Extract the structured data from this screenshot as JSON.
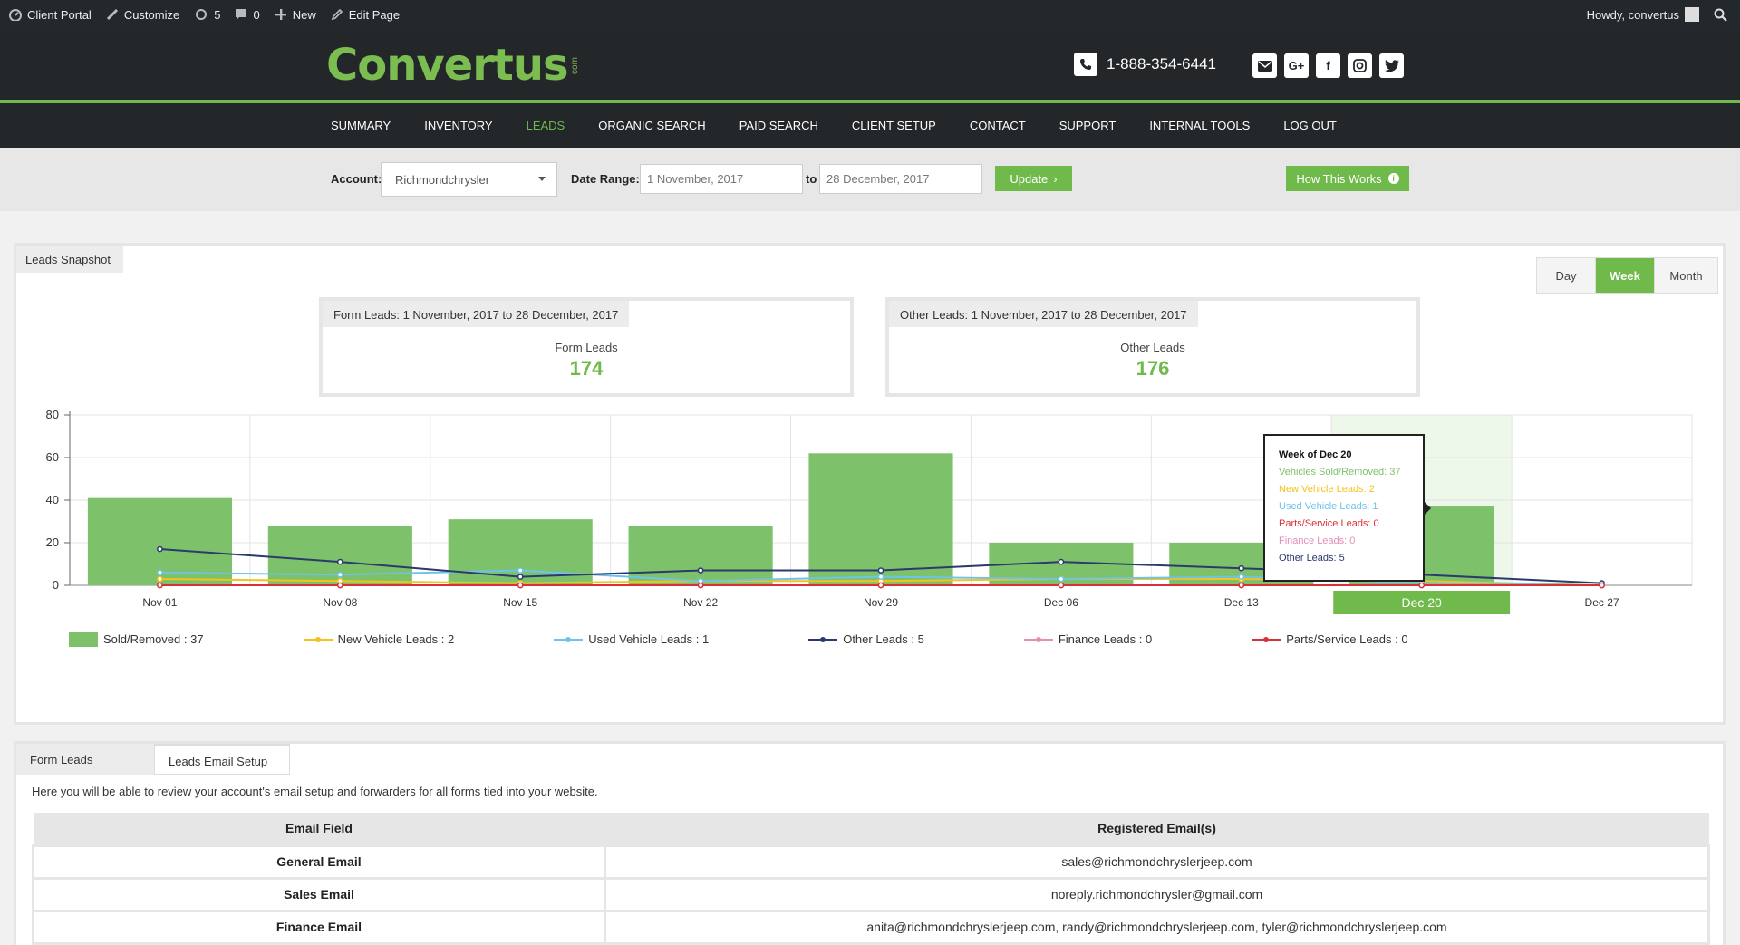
{
  "adminbar": {
    "items": [
      {
        "icon": "dashboard-icon",
        "label": "Client Portal"
      },
      {
        "icon": "brush-icon",
        "label": "Customize"
      },
      {
        "icon": "updates-icon",
        "label": "5"
      },
      {
        "icon": "comment-icon",
        "label": "0"
      },
      {
        "icon": "plus-icon",
        "label": "New"
      },
      {
        "icon": "pencil-icon",
        "label": "Edit Page"
      }
    ],
    "greeting": "Howdy, convertus"
  },
  "header": {
    "logo_text": "Convertus",
    "logo_suffix": "com",
    "phone": "1-888-354-6441",
    "socials": [
      "email-icon",
      "google-plus-icon",
      "facebook-icon",
      "instagram-icon",
      "twitter-icon"
    ]
  },
  "nav": {
    "items": [
      "SUMMARY",
      "INVENTORY",
      "LEADS",
      "ORGANIC SEARCH",
      "PAID SEARCH",
      "CLIENT SETUP",
      "CONTACT",
      "SUPPORT",
      "INTERNAL TOOLS",
      "LOG OUT"
    ],
    "active": "LEADS"
  },
  "filters": {
    "account_label": "Account:",
    "account_value": "Richmondchrysler",
    "date_range_label": "Date Range:",
    "date_from": "1 November, 2017",
    "to_label": "to",
    "date_to": "28 December, 2017",
    "update_label": "Update",
    "how_label": "How This Works"
  },
  "snapshot": {
    "tab_label": "Leads Snapshot",
    "periods": [
      "Day",
      "Week",
      "Month"
    ],
    "active_period": "Week",
    "form_box": {
      "header": "Form Leads: 1 November, 2017 to 28 December, 2017",
      "label": "Form Leads",
      "value": "174"
    },
    "other_box": {
      "header": "Other Leads: 1 November, 2017 to 28 December, 2017",
      "label": "Other Leads",
      "value": "176"
    }
  },
  "chart_data": {
    "type": "bar",
    "categories": [
      "Nov 01",
      "Nov 08",
      "Nov 15",
      "Nov 22",
      "Nov 29",
      "Dec 06",
      "Dec 13",
      "Dec 20",
      "Dec 27"
    ],
    "ylim": [
      0,
      80
    ],
    "yticks": [
      0,
      20,
      40,
      60,
      80
    ],
    "grid": true,
    "highlighted_category": "Dec 20",
    "series": [
      {
        "name": "Sold/Removed",
        "kind": "bar",
        "color": "#7dc26a",
        "values": [
          41,
          28,
          31,
          28,
          62,
          20,
          20,
          37,
          0
        ]
      },
      {
        "name": "New Vehicle Leads",
        "kind": "line",
        "color": "#f3c31c",
        "values": [
          3,
          2,
          1,
          2,
          2,
          3,
          3,
          2,
          0
        ]
      },
      {
        "name": "Used Vehicle Leads",
        "kind": "line",
        "color": "#6fc3e8",
        "values": [
          6,
          5,
          7,
          2,
          4,
          3,
          4,
          1,
          0
        ]
      },
      {
        "name": "Other Leads",
        "kind": "line",
        "color": "#2b3a6b",
        "values": [
          17,
          11,
          4,
          7,
          7,
          11,
          8,
          5,
          1
        ]
      },
      {
        "name": "Finance Leads",
        "kind": "line",
        "color": "#e38fb5",
        "values": [
          0,
          0,
          0,
          0,
          0,
          0,
          0,
          0,
          0
        ]
      },
      {
        "name": "Parts/Service Leads",
        "kind": "line",
        "color": "#d9303a",
        "values": [
          0,
          0,
          0,
          0,
          0,
          0,
          0,
          0,
          0
        ]
      }
    ],
    "legend": [
      {
        "label": "Sold/Removed : 37",
        "color": "#7dc26a",
        "kind": "bar"
      },
      {
        "label": "New Vehicle Leads : 2",
        "color": "#f3c31c",
        "kind": "line"
      },
      {
        "label": "Used Vehicle Leads : 1",
        "color": "#6fc3e8",
        "kind": "line"
      },
      {
        "label": "Other Leads : 5",
        "color": "#2b3a6b",
        "kind": "line"
      },
      {
        "label": "Finance Leads : 0",
        "color": "#e38fb5",
        "kind": "line"
      },
      {
        "label": "Parts/Service Leads : 0",
        "color": "#d9303a",
        "kind": "line"
      }
    ],
    "tooltip": {
      "title": "Week of Dec 20",
      "lines": [
        {
          "text": "Vehicles Sold/Removed: 37",
          "color": "#7dc26a"
        },
        {
          "text": "New Vehicle Leads: 2",
          "color": "#f3c31c"
        },
        {
          "text": "Used Vehicle Leads: 1",
          "color": "#6fc3e8"
        },
        {
          "text": "Parts/Service Leads: 0",
          "color": "#d9303a"
        },
        {
          "text": "Finance Leads: 0",
          "color": "#e38fb5"
        },
        {
          "text": "Other Leads: 5",
          "color": "#2b3a6b"
        }
      ]
    }
  },
  "email_panel": {
    "tabs": [
      "Form Leads",
      "Leads Email Setup"
    ],
    "intro": "Here you will be able to review your account's email setup and forwarders for all forms tied into your website.",
    "columns": [
      "Email Field",
      "Registered Email(s)"
    ],
    "rows": [
      {
        "field": "General Email",
        "emails": "sales@richmondchryslerjeep.com"
      },
      {
        "field": "Sales Email",
        "emails": "noreply.richmondchrysler@gmail.com"
      },
      {
        "field": "Finance Email",
        "emails": "anita@richmondchryslerjeep.com, randy@richmondchryslerjeep.com, tyler@richmondchryslerjeep.com"
      }
    ]
  }
}
